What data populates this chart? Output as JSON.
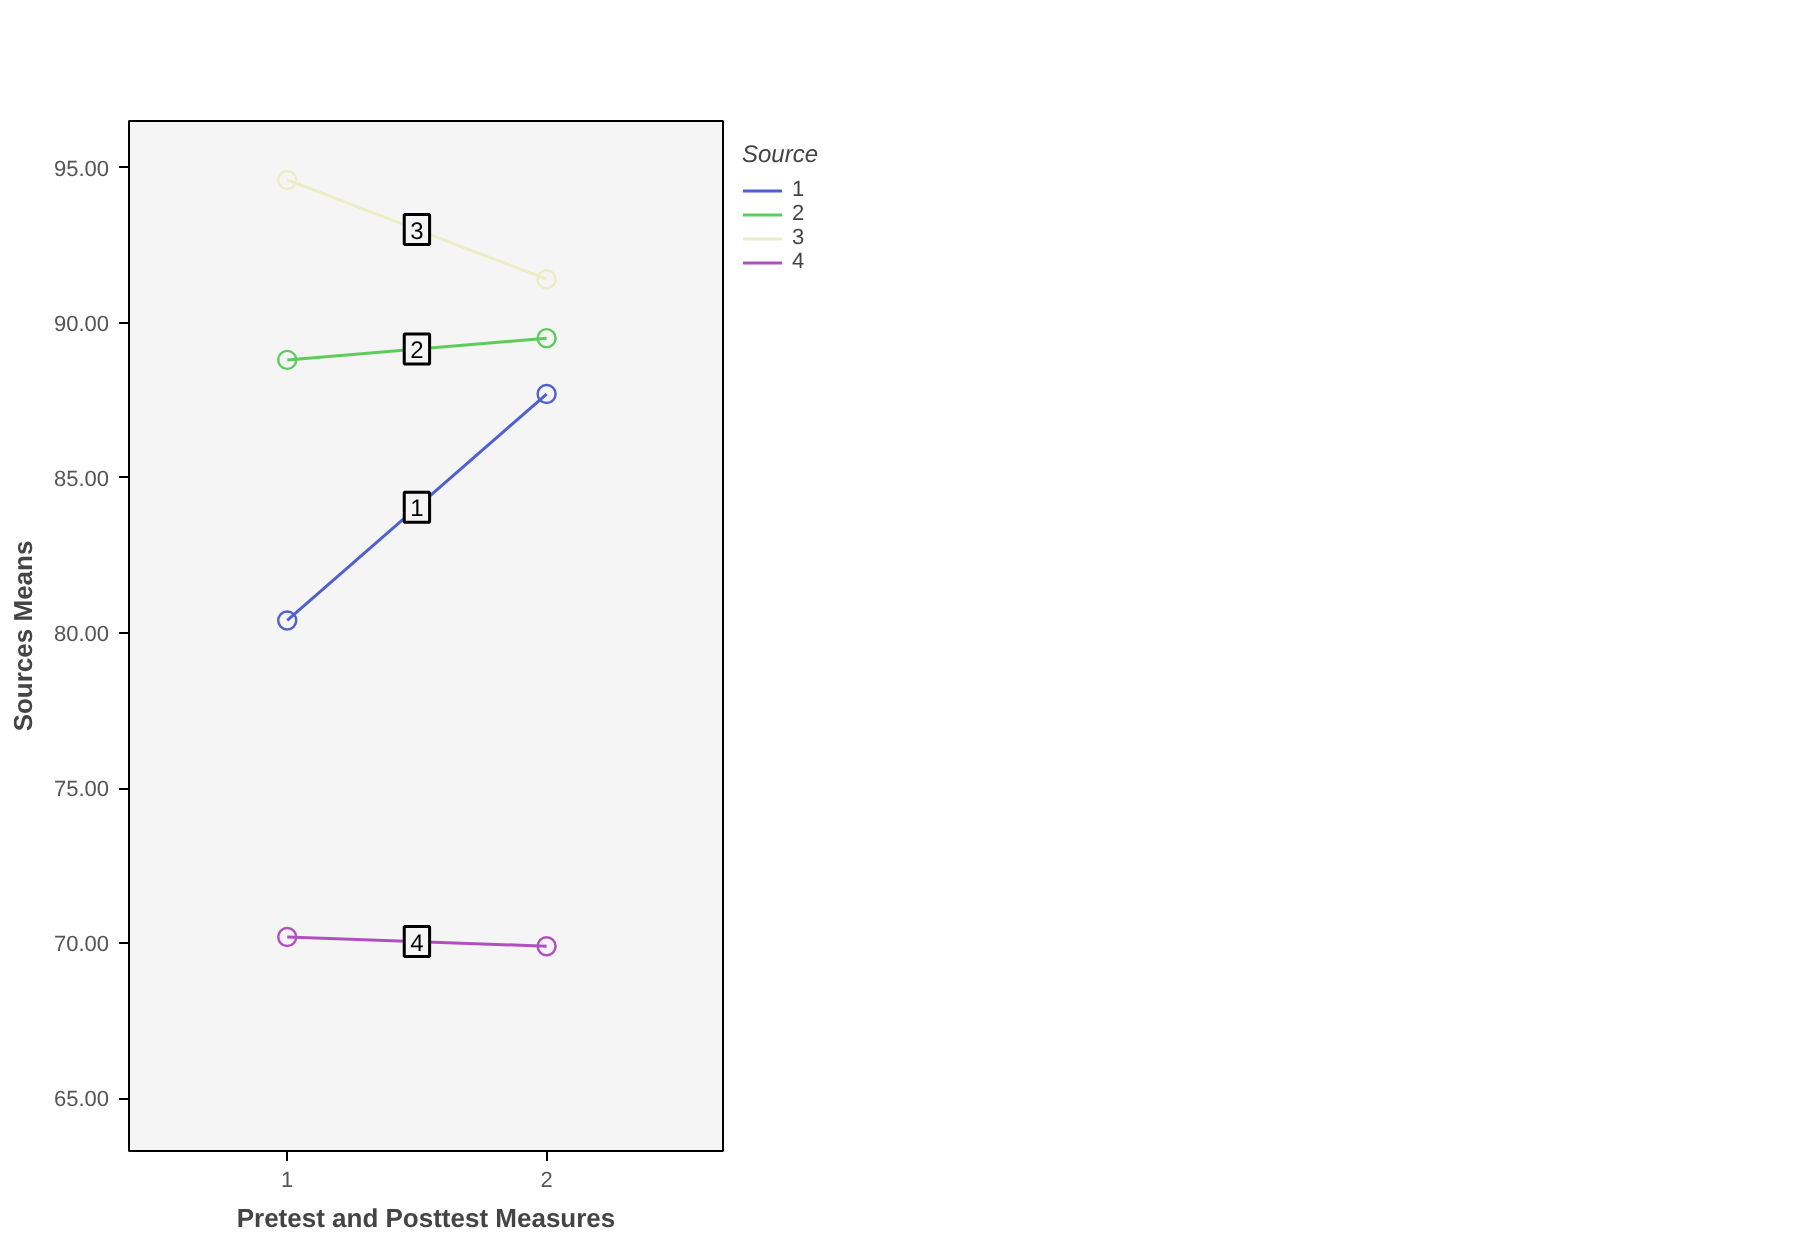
{
  "chart_data": {
    "type": "line",
    "xlabel": "Pretest and Posttest Measures",
    "ylabel": "Sources Means",
    "legend_title": "Source",
    "x": [
      1,
      2
    ],
    "xlim": [
      0.39,
      2.68
    ],
    "xticks": [
      {
        "value": 1,
        "label": "1"
      },
      {
        "value": 2,
        "label": "2"
      }
    ],
    "ylim": [
      63.3,
      96.5
    ],
    "yticks": [
      {
        "value": 65,
        "label": "65.00"
      },
      {
        "value": 70,
        "label": "70.00"
      },
      {
        "value": 75,
        "label": "75.00"
      },
      {
        "value": 80,
        "label": "80.00"
      },
      {
        "value": 85,
        "label": "85.00"
      },
      {
        "value": 90,
        "label": "90.00"
      },
      {
        "value": 95,
        "label": "95.00"
      }
    ],
    "series": [
      {
        "name": "1",
        "color": "#5060d0",
        "values": [
          80.4,
          87.7
        ]
      },
      {
        "name": "2",
        "color": "#5ccc5c",
        "values": [
          88.8,
          89.5
        ]
      },
      {
        "name": "3",
        "color": "#ecedc4",
        "values": [
          94.6,
          91.4
        ]
      },
      {
        "name": "4",
        "color": "#b050c0",
        "values": [
          70.2,
          69.9
        ]
      }
    ],
    "marker": "circle",
    "line_style": "solid",
    "grid": false,
    "legend": "top right"
  }
}
